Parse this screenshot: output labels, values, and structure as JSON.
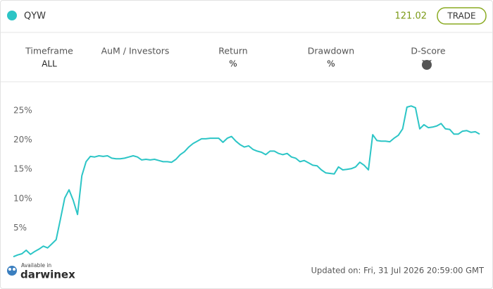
{
  "header": {
    "symbol": "QYW",
    "price": "121.02",
    "button": "TRADE"
  },
  "stats": {
    "labels": [
      "Timeframe",
      "AuM / Investors",
      "Return",
      "Drawdown",
      "D-Score"
    ],
    "timeframe": "ALL",
    "return": "%",
    "drawdown": "%"
  },
  "chart_data": {
    "type": "line",
    "color": "#2cc5c6",
    "ylim": [
      0,
      28
    ],
    "yticks": [
      {
        "value": 5,
        "label": "5%"
      },
      {
        "value": 10,
        "label": "10%"
      },
      {
        "value": 15,
        "label": "15%"
      },
      {
        "value": 20,
        "label": "20%"
      },
      {
        "value": 25,
        "label": "25%"
      }
    ],
    "values": [
      0.1,
      0.4,
      0.6,
      1.2,
      0.5,
      1.0,
      1.4,
      1.9,
      1.6,
      2.3,
      3.0,
      6.5,
      10.1,
      11.5,
      9.7,
      7.3,
      13.9,
      16.3,
      17.2,
      17.1,
      17.3,
      17.2,
      17.3,
      16.9,
      16.8,
      16.8,
      16.9,
      17.1,
      17.3,
      17.1,
      16.6,
      16.7,
      16.6,
      16.7,
      16.5,
      16.3,
      16.3,
      16.2,
      16.7,
      17.5,
      18.0,
      18.8,
      19.4,
      19.8,
      20.2,
      20.2,
      20.3,
      20.3,
      20.3,
      19.6,
      20.3,
      20.6,
      19.8,
      19.2,
      18.8,
      19.0,
      18.4,
      18.1,
      17.9,
      17.5,
      18.1,
      18.1,
      17.7,
      17.5,
      17.7,
      17.1,
      16.9,
      16.3,
      16.5,
      16.1,
      15.7,
      15.6,
      14.9,
      14.4,
      14.3,
      14.2,
      15.4,
      14.9,
      15.0,
      15.1,
      15.4,
      16.2,
      15.7,
      14.9,
      20.9,
      19.9,
      19.8,
      19.8,
      19.7,
      20.3,
      20.8,
      21.9,
      25.6,
      25.8,
      25.5,
      21.9,
      22.6,
      22.1,
      22.2,
      22.4,
      22.8,
      21.9,
      21.8,
      21.0,
      21.0,
      21.5,
      21.6,
      21.3,
      21.4,
      21.0
    ]
  },
  "footer": {
    "available": "Available in",
    "brand": "darwinex",
    "updated": "Updated on: Fri, 31 Jul 2026 20:59:00 GMT"
  }
}
